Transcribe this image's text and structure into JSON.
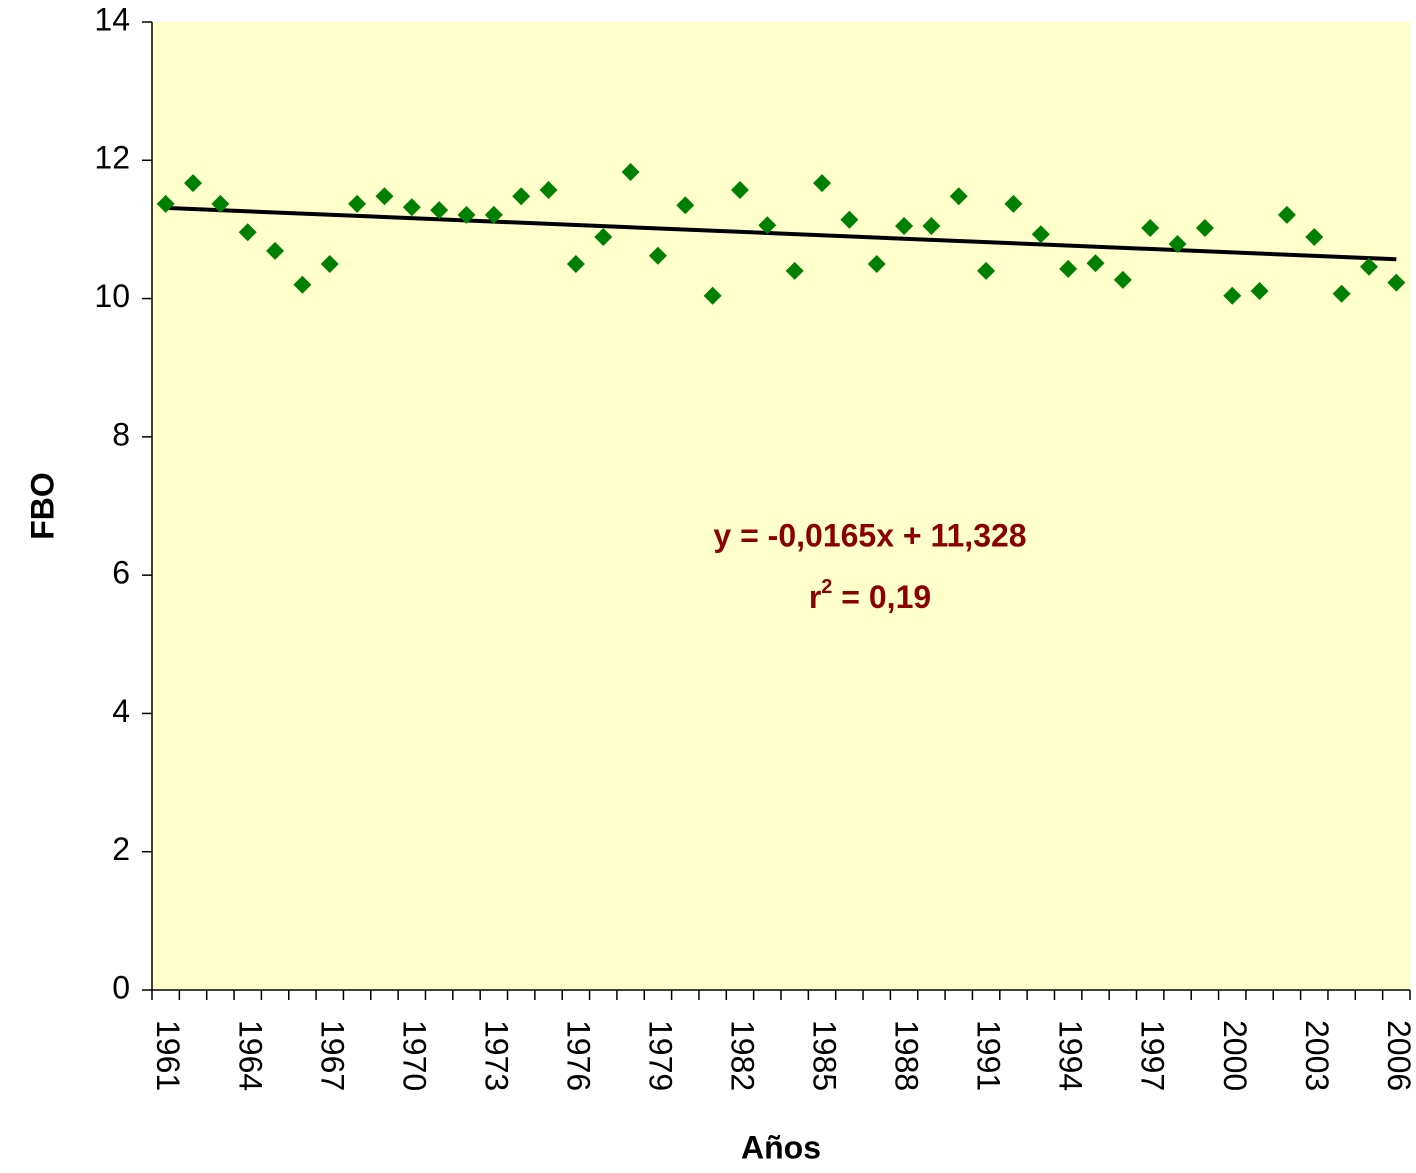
{
  "chart_data": {
    "type": "line",
    "x_label": "Años",
    "y_label": "FBO",
    "categories": [
      "1961",
      null,
      null,
      "1964",
      null,
      null,
      "1967",
      null,
      null,
      "1970",
      null,
      null,
      "1973",
      null,
      null,
      "1976",
      null,
      null,
      "1979",
      null,
      null,
      "1982",
      null,
      null,
      "1985",
      null,
      null,
      "1988",
      null,
      null,
      "1991",
      null,
      null,
      "1994",
      null,
      null,
      "1997",
      null,
      null,
      "2000",
      null,
      null,
      "2003",
      null,
      null,
      "2006"
    ],
    "series": [
      {
        "name": "FBO",
        "color": "#008000",
        "values": [
          11.37,
          11.67,
          11.37,
          10.96,
          10.69,
          10.2,
          10.5,
          11.37,
          11.48,
          11.32,
          11.28,
          11.21,
          11.21,
          11.48,
          11.57,
          10.5,
          10.89,
          11.83,
          10.62,
          11.35,
          10.04,
          11.57,
          11.06,
          10.4,
          11.67,
          11.14,
          10.5,
          11.05,
          11.05,
          11.48,
          10.4,
          11.37,
          10.93,
          10.43,
          10.51,
          10.27,
          11.02,
          10.79,
          11.02,
          10.04,
          10.11,
          11.21,
          10.89,
          10.07,
          10.46,
          10.23
        ]
      }
    ],
    "trendline": {
      "slope": -0.0165,
      "intercept": 11.328,
      "color": "#000000"
    },
    "annotation": {
      "equation": "y = -0,0165x + 11,328",
      "r_squared": {
        "base": "r",
        "exponent": "2",
        "rest": " = 0,19"
      },
      "color": "#8B0000"
    },
    "ylim": [
      0,
      14
    ],
    "yticks": [
      0,
      2,
      4,
      6,
      8,
      10,
      12,
      14
    ],
    "background": "#FFFFCC"
  }
}
